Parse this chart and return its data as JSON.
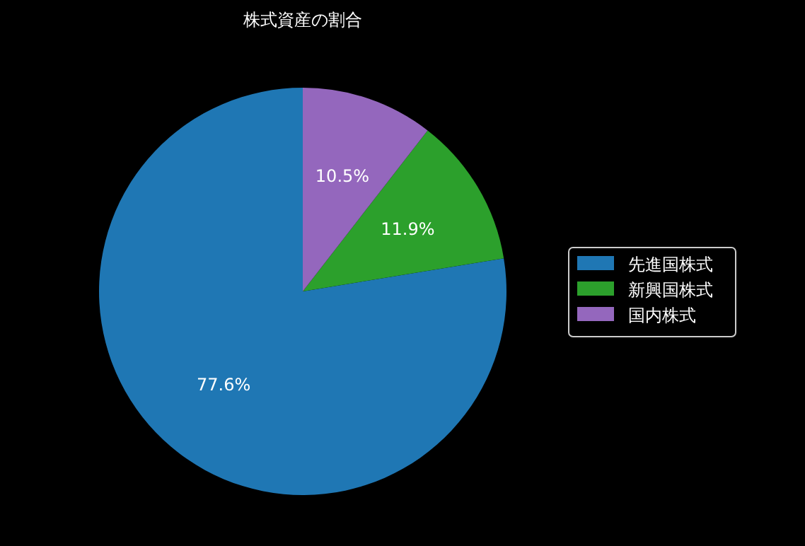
{
  "chart_data": {
    "type": "pie",
    "title": "株式資産の割合",
    "categories": [
      "先進国株式",
      "新興国株式",
      "国内株式"
    ],
    "values": [
      77.6,
      11.9,
      10.5
    ],
    "colors": [
      "#1f77b4",
      "#2ca02c",
      "#9467bd"
    ],
    "value_labels": [
      "77.6%",
      "11.9%",
      "10.5%"
    ],
    "legend": "right"
  }
}
